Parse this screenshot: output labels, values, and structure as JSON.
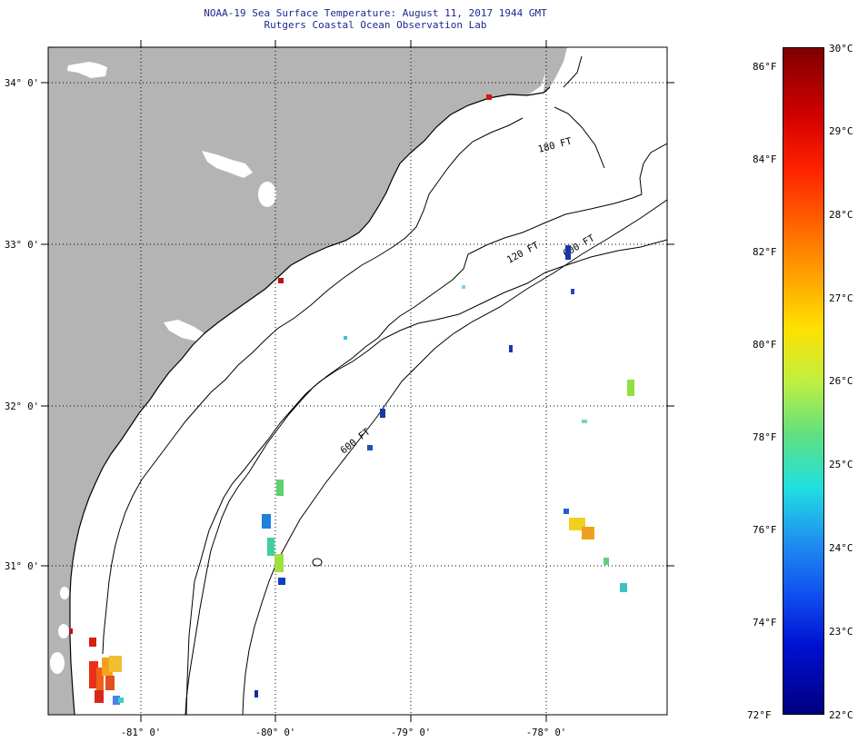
{
  "title": "NOAA-19 Sea Surface Temperature:  August 11, 2017 1944 GMT",
  "subtitle": "Rutgers Coastal Ocean Observation Lab",
  "map": {
    "lat_labels": [
      "34° 0'",
      "33° 0'",
      "32° 0'",
      "31° 0'"
    ],
    "lon_labels": [
      "-81° 0'",
      "-80° 0'",
      "-79° 0'",
      "-78° 0'"
    ],
    "isobaths": [
      "120 FT",
      "180 FT",
      "600 FT"
    ],
    "land_color": "#b4b4b4",
    "grid_style": "dotted"
  },
  "colorbar": {
    "fahrenheit_labels": [
      "86°F",
      "84°F",
      "82°F",
      "80°F",
      "78°F",
      "76°F",
      "74°F",
      "72°F"
    ],
    "celsius_labels": [
      "30°C",
      "29°C",
      "28°C",
      "27°C",
      "26°C",
      "25°C",
      "24°C",
      "23°C",
      "22°C"
    ],
    "colormap": "jet",
    "range_c": [
      22,
      30
    ]
  }
}
